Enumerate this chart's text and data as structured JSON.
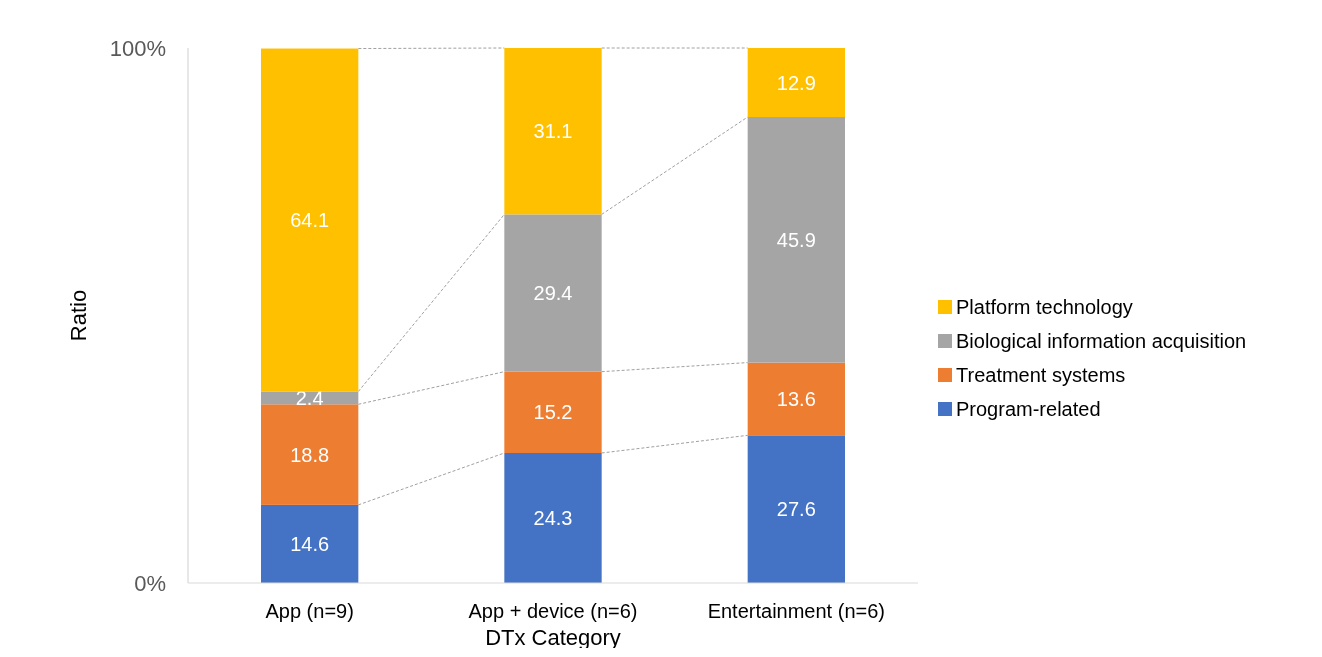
{
  "chart_data": {
    "type": "bar",
    "stacked": true,
    "xlabel": "DTx Category",
    "ylabel": "Ratio",
    "categories": [
      "App (n=9)",
      "App + device (n=6)",
      "Entertainment (n=6)"
    ],
    "series": [
      {
        "name": "Program-related",
        "color": "#4472c4",
        "values": [
          14.6,
          24.3,
          27.6
        ]
      },
      {
        "name": "Treatment systems",
        "color": "#ed7d31",
        "values": [
          18.8,
          15.2,
          13.6
        ]
      },
      {
        "name": "Biological information acquisition",
        "color": "#a5a5a5",
        "values": [
          2.4,
          29.4,
          45.9
        ]
      },
      {
        "name": "Platform technology",
        "color": "#ffc000",
        "values": [
          64.1,
          31.1,
          12.9
        ]
      }
    ],
    "ylim": [
      0,
      100
    ],
    "yticks": [
      {
        "value": 0,
        "label": "0%"
      },
      {
        "value": 100,
        "label": "100%"
      }
    ],
    "data_labels": true,
    "legend": "right"
  }
}
